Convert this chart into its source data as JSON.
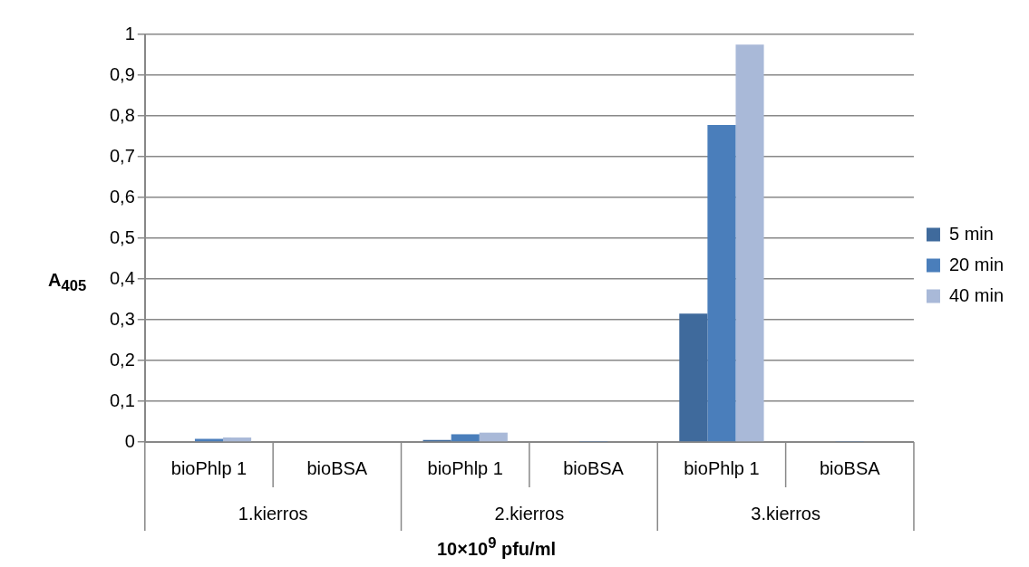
{
  "chart_data": {
    "type": "bar",
    "ylabel": "A$_{405}$",
    "xlabel": "10×10$^{9}$ pfu/ml",
    "categories": [
      "bioPhlp 1",
      "bioBSA",
      "bioPhlp 1",
      "bioBSA",
      "bioPhlp 1",
      "bioBSA"
    ],
    "annotations": [
      "1.kierros",
      "2.kierros",
      "3.kierros"
    ],
    "series": [
      {
        "name": "5 min",
        "color": "#3f6a9c",
        "values": [
          null,
          0,
          0.005,
          0,
          0.315,
          0
        ]
      },
      {
        "name": "20 min",
        "color": "#4a7ebb",
        "values": [
          0.008,
          0,
          0.019,
          0.001,
          0.778,
          0.001
        ]
      },
      {
        "name": "40 min",
        "color": "#a9b9d8",
        "values": [
          0.011,
          null,
          0.023,
          null,
          0.975,
          null
        ]
      }
    ],
    "ylim": [
      0,
      1
    ],
    "yticks": [
      0,
      {
        "value": 0.1,
        "label": "0,1"
      },
      {
        "value": 0.2,
        "label": "0,2"
      },
      {
        "value": 0.3,
        "label": "0,3"
      },
      {
        "value": 0.4,
        "label": "0,4"
      },
      {
        "value": 0.5,
        "label": "0,5"
      },
      {
        "value": 0.6,
        "label": "0,6"
      },
      {
        "value": 0.7,
        "label": "0,7"
      },
      {
        "value": 0.8,
        "label": "0,8"
      },
      {
        "value": 0.9,
        "label": "0,9"
      },
      1
    ],
    "grid": "y",
    "legend": "right"
  }
}
